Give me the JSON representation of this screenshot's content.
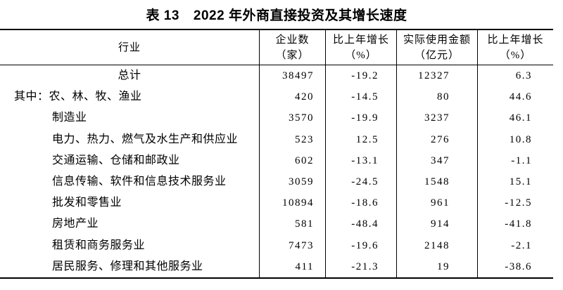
{
  "page": {
    "background": "#ffffff",
    "text_color": "#000000",
    "line_color": "#000000"
  },
  "title": {
    "index": "表 13",
    "text": "2022 年外商直接投资及其增长速度"
  },
  "table": {
    "header": {
      "col1": {
        "line1": "行业",
        "line2": ""
      },
      "col2": {
        "line1": "企业数",
        "line2": "（家）"
      },
      "col3": {
        "line1": "比上年增长",
        "line2": "（%）"
      },
      "col4": {
        "line1": "实际使用金额",
        "line2": "（亿元）"
      },
      "col5": {
        "line1": "比上年增长",
        "line2": "（%）"
      }
    },
    "rows": [
      {
        "industry": "总计",
        "enterprises": "38497",
        "growth1": "-19.2",
        "amount": "12327",
        "growth2": "6.3"
      },
      {
        "industry": "其中：农、林、牧、渔业",
        "enterprises": "420",
        "growth1": "-14.5",
        "amount": "80",
        "growth2": "44.6"
      },
      {
        "industry": "制造业",
        "enterprises": "3570",
        "growth1": "-19.9",
        "amount": "3237",
        "growth2": "46.1"
      },
      {
        "industry": "电力、热力、燃气及水生产和供应业",
        "enterprises": "523",
        "growth1": "12.5",
        "amount": "276",
        "growth2": "10.8"
      },
      {
        "industry": "交通运输、仓储和邮政业",
        "enterprises": "602",
        "growth1": "-13.1",
        "amount": "347",
        "growth2": "-1.1"
      },
      {
        "industry": "信息传输、软件和信息技术服务业",
        "enterprises": "3059",
        "growth1": "-24.5",
        "amount": "1548",
        "growth2": "15.1"
      },
      {
        "industry": "批发和零售业",
        "enterprises": "10894",
        "growth1": "-18.6",
        "amount": "961",
        "growth2": "-12.5"
      },
      {
        "industry": "房地产业",
        "enterprises": "581",
        "growth1": "-48.4",
        "amount": "914",
        "growth2": "-41.8"
      },
      {
        "industry": "租赁和商务服务业",
        "enterprises": "7473",
        "growth1": "-19.6",
        "amount": "2148",
        "growth2": "-2.1"
      },
      {
        "industry": "居民服务、修理和其他服务业",
        "enterprises": "411",
        "growth1": "-21.3",
        "amount": "19",
        "growth2": "-38.6"
      }
    ]
  },
  "chart_data": {
    "type": "table",
    "title": "表 13　2022 年外商直接投资及其增长速度",
    "columns": [
      "行业",
      "企业数（家）",
      "比上年增长（%）",
      "实际使用金额（亿元）",
      "比上年增长（%）"
    ],
    "rows": [
      [
        "总计",
        38497,
        -19.2,
        12327,
        6.3
      ],
      [
        "其中：农、林、牧、渔业",
        420,
        -14.5,
        80,
        44.6
      ],
      [
        "制造业",
        3570,
        -19.9,
        3237,
        46.1
      ],
      [
        "电力、热力、燃气及水生产和供应业",
        523,
        12.5,
        276,
        10.8
      ],
      [
        "交通运输、仓储和邮政业",
        602,
        -13.1,
        347,
        -1.1
      ],
      [
        "信息传输、软件和信息技术服务业",
        3059,
        -24.5,
        1548,
        15.1
      ],
      [
        "批发和零售业",
        10894,
        -18.6,
        961,
        -12.5
      ],
      [
        "房地产业",
        581,
        -48.4,
        914,
        -41.8
      ],
      [
        "租赁和商务服务业",
        7473,
        -19.6,
        2148,
        -2.1
      ],
      [
        "居民服务、修理和其他服务业",
        411,
        -21.3,
        19,
        -38.6
      ]
    ]
  }
}
